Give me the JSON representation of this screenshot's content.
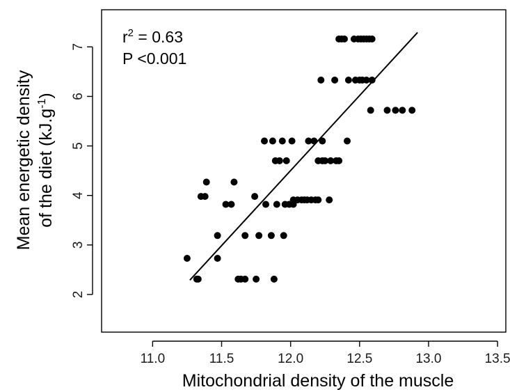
{
  "chart_data": {
    "type": "scatter",
    "xlabel": "Mitochondrial density of the muscle",
    "ylabel_line1": "Mean energetic density",
    "ylabel_line2_prefix": "of the diet (kJ.g",
    "ylabel_line2_sup": "-1",
    "ylabel_line2_suffix": ")",
    "annotation_r2_prefix": "r",
    "annotation_r2_sup": "2",
    "annotation_r2_value": " = 0.63",
    "annotation_p": "P <0.001",
    "xlim": [
      10.63,
      13.56
    ],
    "ylim": [
      1.24,
      7.75
    ],
    "xticks": [
      "11.0",
      "11.5",
      "12.0",
      "12.5",
      "13.0",
      "13.5"
    ],
    "yticks": [
      "2",
      "3",
      "4",
      "5",
      "6",
      "7"
    ],
    "point_color": "#000000",
    "points": [
      [
        11.25,
        2.73
      ],
      [
        11.32,
        2.31
      ],
      [
        11.33,
        2.31
      ],
      [
        11.35,
        3.98
      ],
      [
        11.38,
        3.98
      ],
      [
        11.39,
        4.27
      ],
      [
        11.47,
        3.19
      ],
      [
        11.47,
        2.73
      ],
      [
        11.53,
        3.82
      ],
      [
        11.57,
        3.82
      ],
      [
        11.59,
        4.27
      ],
      [
        11.62,
        2.31
      ],
      [
        11.64,
        2.31
      ],
      [
        11.67,
        3.19
      ],
      [
        11.67,
        2.31
      ],
      [
        11.74,
        3.98
      ],
      [
        11.75,
        2.31
      ],
      [
        11.77,
        3.19
      ],
      [
        11.81,
        5.1
      ],
      [
        11.82,
        3.82
      ],
      [
        11.86,
        3.19
      ],
      [
        11.87,
        5.1
      ],
      [
        11.88,
        2.31
      ],
      [
        11.89,
        4.7
      ],
      [
        11.9,
        3.82
      ],
      [
        11.92,
        4.7
      ],
      [
        11.94,
        5.1
      ],
      [
        11.95,
        3.19
      ],
      [
        11.96,
        3.82
      ],
      [
        11.97,
        4.7
      ],
      [
        11.99,
        3.82
      ],
      [
        12.01,
        5.1
      ],
      [
        12.02,
        3.82
      ],
      [
        12.02,
        3.91
      ],
      [
        12.05,
        3.91
      ],
      [
        12.08,
        3.91
      ],
      [
        12.1,
        3.91
      ],
      [
        12.12,
        3.91
      ],
      [
        12.13,
        5.1
      ],
      [
        12.15,
        3.91
      ],
      [
        12.17,
        5.1
      ],
      [
        12.18,
        3.91
      ],
      [
        12.2,
        3.91
      ],
      [
        12.2,
        4.7
      ],
      [
        12.22,
        6.33
      ],
      [
        12.23,
        4.7
      ],
      [
        12.23,
        5.1
      ],
      [
        12.25,
        4.7
      ],
      [
        12.28,
        3.91
      ],
      [
        12.29,
        4.7
      ],
      [
        12.32,
        6.33
      ],
      [
        12.33,
        4.7
      ],
      [
        12.35,
        4.7
      ],
      [
        12.35,
        7.16
      ],
      [
        12.37,
        7.16
      ],
      [
        12.39,
        7.16
      ],
      [
        12.41,
        5.1
      ],
      [
        12.42,
        6.33
      ],
      [
        12.46,
        7.16
      ],
      [
        12.47,
        6.33
      ],
      [
        12.49,
        7.16
      ],
      [
        12.5,
        6.33
      ],
      [
        12.51,
        7.16
      ],
      [
        12.52,
        6.33
      ],
      [
        12.53,
        7.16
      ],
      [
        12.55,
        7.16
      ],
      [
        12.55,
        6.33
      ],
      [
        12.57,
        7.16
      ],
      [
        12.58,
        5.72
      ],
      [
        12.59,
        7.16
      ],
      [
        12.59,
        6.33
      ],
      [
        12.7,
        5.72
      ],
      [
        12.76,
        5.72
      ],
      [
        12.81,
        5.72
      ],
      [
        12.88,
        5.72
      ]
    ],
    "regression_line": {
      "x": [
        11.27,
        12.92
      ],
      "y": [
        2.29,
        7.29
      ]
    }
  }
}
